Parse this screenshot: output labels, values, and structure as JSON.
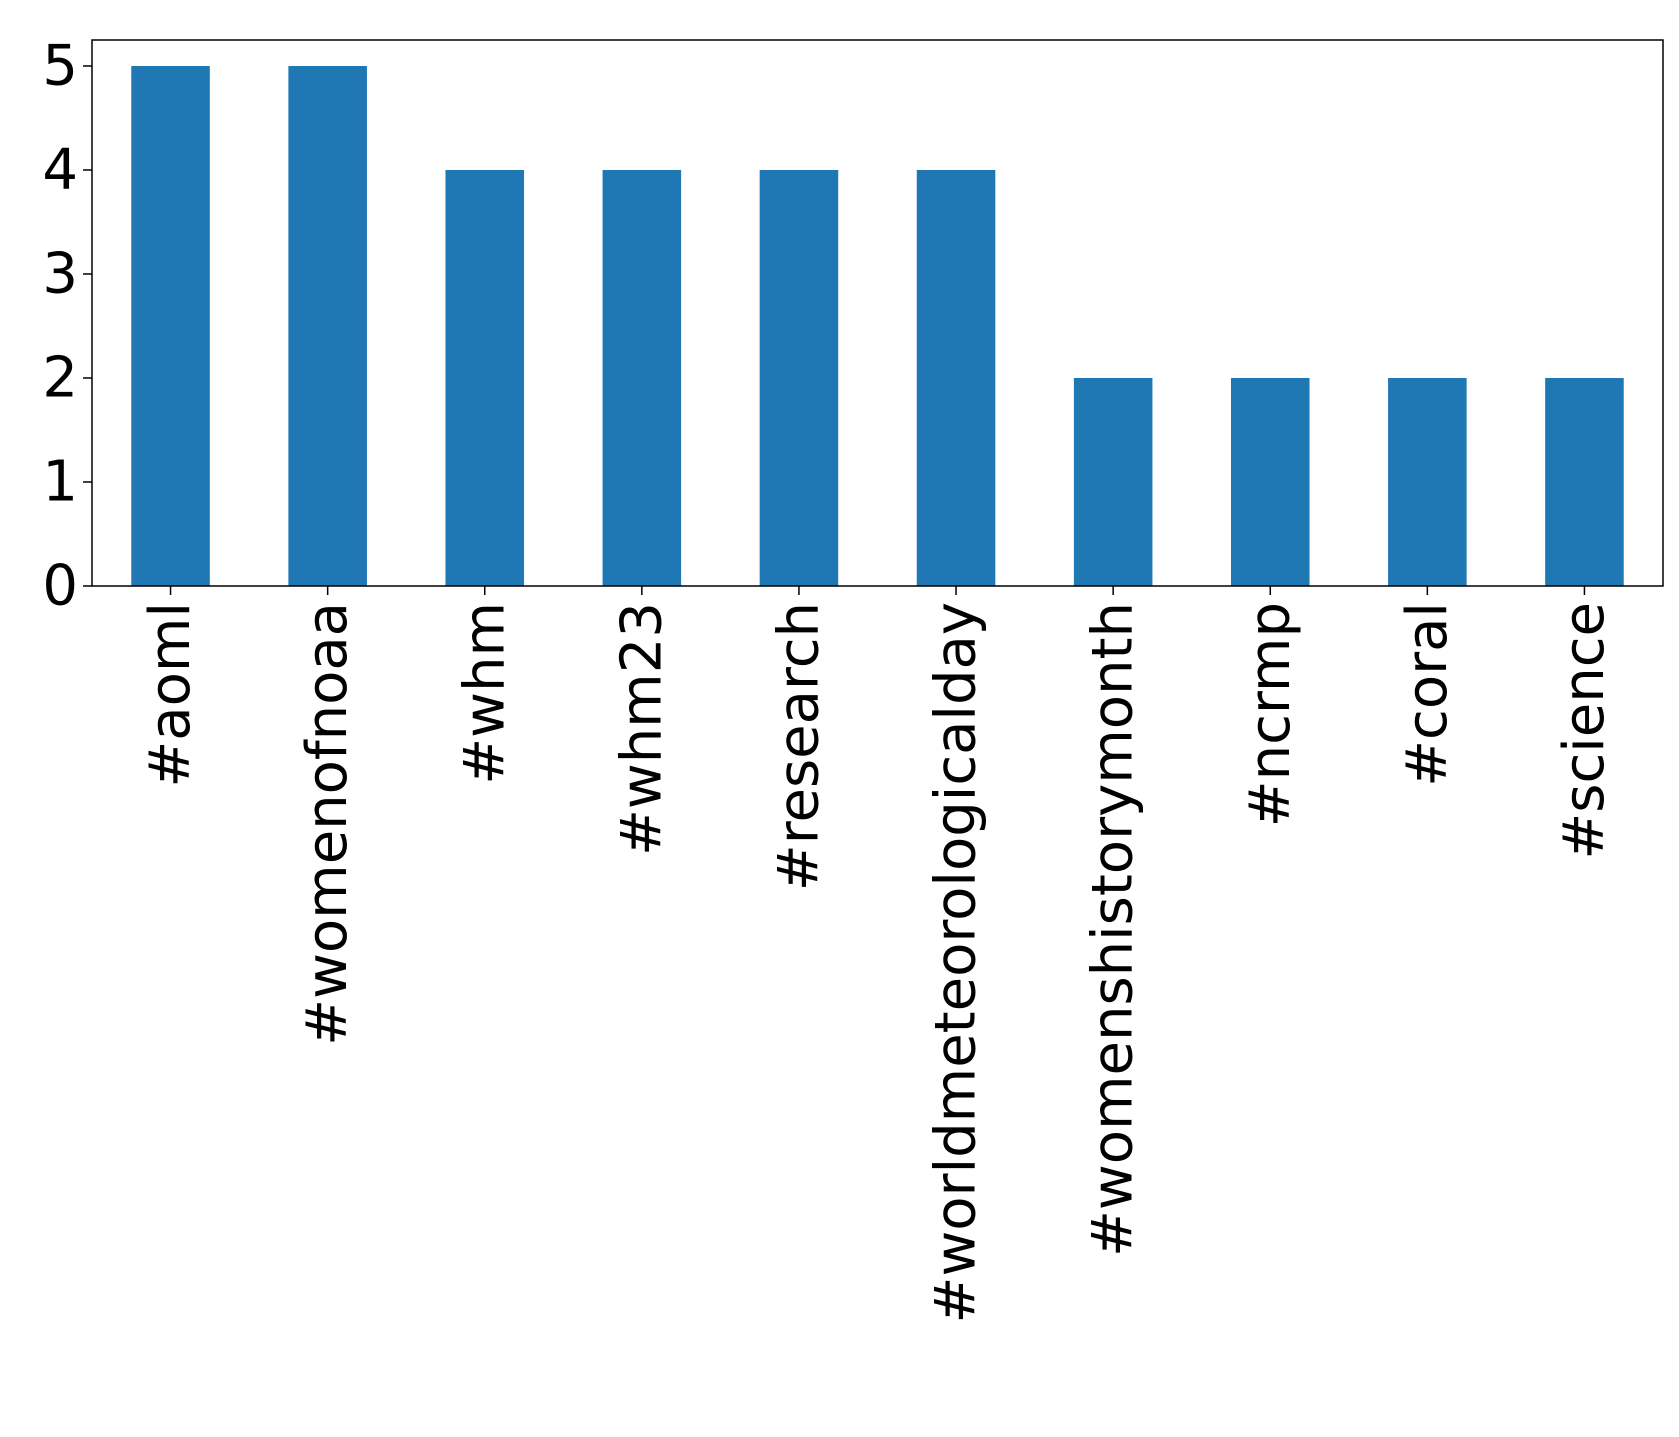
{
  "chart_data": {
    "type": "bar",
    "categories": [
      "#aoml",
      "#womenofnoaa",
      "#whm",
      "#whm23",
      "#research",
      "#worldmeteorologicalday",
      "#womenshistorymonth",
      "#ncrmp",
      "#coral",
      "#science"
    ],
    "values": [
      5,
      5,
      4,
      4,
      4,
      4,
      2,
      2,
      2,
      2
    ],
    "title": "",
    "xlabel": "",
    "ylabel": "",
    "ylim": [
      0,
      5.25
    ],
    "yticks": [
      "0",
      "1",
      "2",
      "3",
      "4",
      "5"
    ],
    "grid": false,
    "legend": "none",
    "bar_color": "#1f77b4"
  }
}
